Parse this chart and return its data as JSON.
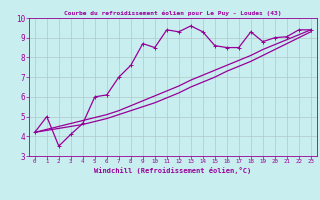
{
  "title": "Courbe du refroidissement éolien pour Le Puy - Loudes (43)",
  "xlabel": "Windchill (Refroidissement éolien,°C)",
  "bg_color": "#c8eef0",
  "line_color": "#990099",
  "grid_color": "#b0c8c8",
  "xlim": [
    -0.5,
    23.5
  ],
  "ylim": [
    3,
    10
  ],
  "xticks": [
    0,
    1,
    2,
    3,
    4,
    5,
    6,
    7,
    8,
    9,
    10,
    11,
    12,
    13,
    14,
    15,
    16,
    17,
    18,
    19,
    20,
    21,
    22,
    23
  ],
  "yticks": [
    3,
    4,
    5,
    6,
    7,
    8,
    9,
    10
  ],
  "line1_x": [
    0,
    1,
    2,
    3,
    4,
    5,
    6,
    7,
    8,
    9,
    10,
    11,
    12,
    13,
    14,
    15,
    16,
    17,
    18,
    19,
    20,
    21,
    22,
    23
  ],
  "line1_y": [
    4.2,
    5.0,
    3.5,
    4.1,
    4.65,
    6.0,
    6.1,
    7.0,
    7.6,
    8.7,
    8.5,
    9.4,
    9.3,
    9.6,
    9.3,
    8.6,
    8.5,
    8.5,
    9.3,
    8.8,
    9.0,
    9.05,
    9.4,
    9.4
  ],
  "line2_x": [
    0,
    1,
    2,
    3,
    4,
    5,
    6,
    7,
    8,
    9,
    10,
    11,
    12,
    13,
    14,
    15,
    16,
    17,
    18,
    19,
    20,
    21,
    22,
    23
  ],
  "line2_y": [
    4.2,
    4.3,
    4.4,
    4.5,
    4.6,
    4.75,
    4.9,
    5.1,
    5.3,
    5.5,
    5.7,
    5.95,
    6.2,
    6.5,
    6.75,
    7.0,
    7.3,
    7.55,
    7.8,
    8.1,
    8.4,
    8.7,
    9.0,
    9.3
  ],
  "line3_x": [
    0,
    1,
    2,
    3,
    4,
    5,
    6,
    7,
    8,
    9,
    10,
    11,
    12,
    13,
    14,
    15,
    16,
    17,
    18,
    19,
    20,
    21,
    22,
    23
  ],
  "line3_y": [
    4.2,
    4.35,
    4.5,
    4.65,
    4.8,
    4.95,
    5.1,
    5.3,
    5.55,
    5.8,
    6.05,
    6.3,
    6.55,
    6.85,
    7.1,
    7.35,
    7.6,
    7.85,
    8.1,
    8.4,
    8.65,
    8.9,
    9.15,
    9.4
  ]
}
